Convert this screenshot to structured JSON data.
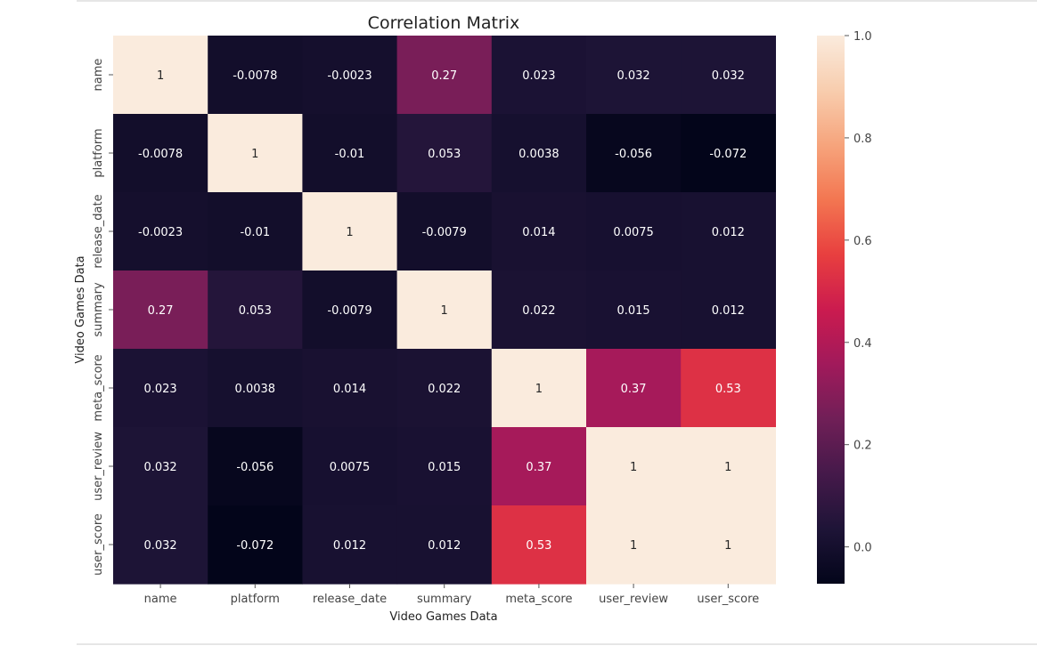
{
  "chart_data": {
    "type": "heatmap",
    "title": "Correlation Matrix",
    "xlabel": "Video Games Data",
    "ylabel": "Video Games Data",
    "x_categories": [
      "name",
      "platform",
      "release_date",
      "summary",
      "meta_score",
      "user_review",
      "user_score"
    ],
    "y_categories": [
      "name",
      "platform",
      "release_date",
      "summary",
      "meta_score",
      "user_review",
      "user_score"
    ],
    "values": [
      [
        1,
        -0.0078,
        -0.0023,
        0.27,
        0.023,
        0.032,
        0.032
      ],
      [
        -0.0078,
        1,
        -0.01,
        0.053,
        0.0038,
        -0.056,
        -0.072
      ],
      [
        -0.0023,
        -0.01,
        1,
        -0.0079,
        0.014,
        0.0075,
        0.012
      ],
      [
        0.27,
        0.053,
        -0.0079,
        1,
        0.022,
        0.015,
        0.012
      ],
      [
        0.023,
        0.0038,
        0.014,
        0.022,
        1,
        0.37,
        0.53
      ],
      [
        0.032,
        -0.056,
        0.0075,
        0.015,
        0.37,
        1,
        1
      ],
      [
        0.032,
        -0.072,
        0.012,
        0.012,
        0.53,
        1,
        1
      ]
    ],
    "labels": [
      [
        "1",
        "-0.0078",
        "-0.0023",
        "0.27",
        "0.023",
        "0.032",
        "0.032"
      ],
      [
        "-0.0078",
        "1",
        "-0.01",
        "0.053",
        "0.0038",
        "-0.056",
        "-0.072"
      ],
      [
        "-0.0023",
        "-0.01",
        "1",
        "-0.0079",
        "0.014",
        "0.0075",
        "0.012"
      ],
      [
        "0.27",
        "0.053",
        "-0.0079",
        "1",
        "0.022",
        "0.015",
        "0.012"
      ],
      [
        "0.023",
        "0.0038",
        "0.014",
        "0.022",
        "1",
        "0.37",
        "0.53"
      ],
      [
        "0.032",
        "-0.056",
        "0.0075",
        "0.015",
        "0.37",
        "1",
        "1"
      ],
      [
        "0.032",
        "-0.072",
        "0.012",
        "0.012",
        "0.53",
        "1",
        "1"
      ]
    ],
    "colorbar": {
      "vmin": -0.072,
      "vmax": 1,
      "ticks": [
        0.0,
        0.2,
        0.4,
        0.6,
        0.8,
        1.0
      ],
      "tick_labels": [
        "0.0",
        "0.2",
        "0.4",
        "0.6",
        "0.8",
        "1.0"
      ],
      "colormap": "rocket",
      "colormap_stops": [
        "#03051a",
        "#1e1437",
        "#45194a",
        "#701f57",
        "#a11a5b",
        "#cb1b4f",
        "#e83f3f",
        "#f37651",
        "#f6a47c",
        "#f8cdae",
        "#faebdd"
      ]
    }
  }
}
